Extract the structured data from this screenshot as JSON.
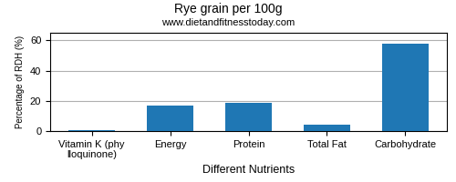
{
  "chart_data": {
    "type": "bar",
    "title": "Rye grain per 100g",
    "subtitle": "www.dietandfitnesstoday.com",
    "xlabel": "Different Nutrients",
    "ylabel": "Percentage of RDH (%)",
    "categories": [
      "Vitamin K (phylloquinone)",
      "Energy",
      "Protein",
      "Total Fat",
      "Carbohydrate"
    ],
    "values": [
      0.5,
      17,
      18.5,
      4,
      58
    ],
    "ylim": [
      0,
      65
    ],
    "yticks": [
      0,
      20,
      40,
      60
    ],
    "grid": "y"
  }
}
